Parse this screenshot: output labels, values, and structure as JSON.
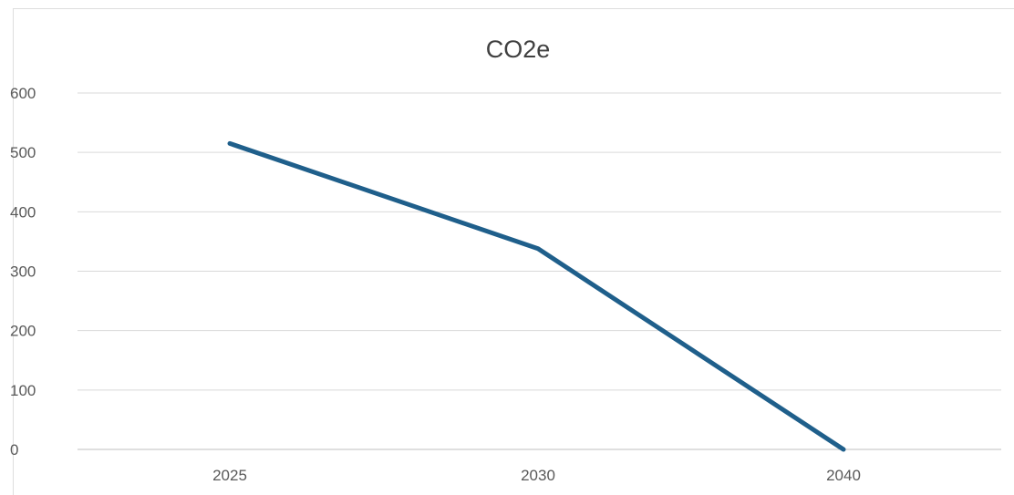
{
  "chart_data": {
    "type": "line",
    "title": "CO2e",
    "categories": [
      "2025",
      "2030",
      "2040"
    ],
    "series": [
      {
        "values": [
          515,
          338,
          0
        ]
      }
    ],
    "ylim": [
      0,
      600
    ],
    "yticks": [
      "0",
      "100",
      "200",
      "300",
      "400",
      "500",
      "600"
    ],
    "xlabel": "",
    "ylabel": "",
    "grid": true,
    "legend": "none",
    "colors": {
      "line": "#1f5f8b"
    }
  }
}
